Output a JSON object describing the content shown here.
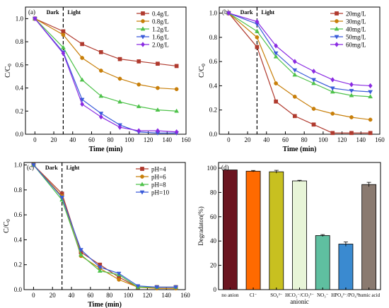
{
  "chart_data": [
    {
      "type": "line",
      "panel_label": "(a)",
      "xlabel": "Time (min)",
      "ylabel": "C/C0",
      "xlim": [
        -10,
        160
      ],
      "ylim": [
        0,
        1.1
      ],
      "xticks": [
        0,
        20,
        40,
        60,
        80,
        100,
        120,
        140,
        160
      ],
      "yticks": [
        0,
        0.2,
        0.4,
        0.6,
        0.8,
        1.0
      ],
      "annotations": {
        "dark": "Dark",
        "light": "Light"
      },
      "divider_x": 30,
      "legend": "top-right",
      "x": [
        0,
        30,
        50,
        70,
        90,
        110,
        130,
        150
      ],
      "series": [
        {
          "name": "0.4g/L",
          "color": "#b03a2e",
          "marker": "square",
          "values": [
            1.0,
            0.89,
            0.78,
            0.71,
            0.65,
            0.63,
            0.61,
            0.59
          ]
        },
        {
          "name": "0.8g/L",
          "color": "#c87f0a",
          "marker": "circle",
          "values": [
            1.0,
            0.86,
            0.66,
            0.55,
            0.48,
            0.43,
            0.4,
            0.39
          ]
        },
        {
          "name": "1.2g/L",
          "color": "#4ec24a",
          "marker": "triangle",
          "values": [
            1.0,
            0.75,
            0.47,
            0.33,
            0.28,
            0.24,
            0.21,
            0.2
          ]
        },
        {
          "name": "1.6g/L",
          "color": "#3a5bd9",
          "marker": "triangle-down",
          "values": [
            1.0,
            0.71,
            0.3,
            0.18,
            0.08,
            0.02,
            0.01,
            0.01
          ]
        },
        {
          "name": "2.0g/L",
          "color": "#8a2be2",
          "marker": "diamond",
          "values": [
            1.0,
            0.7,
            0.26,
            0.15,
            0.06,
            0.03,
            0.03,
            0.02
          ]
        }
      ]
    },
    {
      "type": "line",
      "panel_label": "(b)",
      "xlabel": "Time (min)",
      "ylabel": "C/C0",
      "xlim": [
        -10,
        160
      ],
      "ylim": [
        0,
        1.05
      ],
      "xticks": [
        0,
        20,
        40,
        60,
        80,
        100,
        120,
        140,
        160
      ],
      "yticks": [
        0,
        0.2,
        0.4,
        0.6,
        0.8,
        1.0
      ],
      "annotations": {
        "dark": "Dark",
        "light": "Light"
      },
      "divider_x": 30,
      "legend": "top-right",
      "x": [
        0,
        30,
        50,
        70,
        90,
        110,
        130,
        150
      ],
      "series": [
        {
          "name": "20mg/L",
          "color": "#b03a2e",
          "marker": "square",
          "values": [
            1.0,
            0.72,
            0.27,
            0.15,
            0.08,
            0.01,
            0.01,
            0.01
          ]
        },
        {
          "name": "30mg/L",
          "color": "#c87f0a",
          "marker": "circle",
          "values": [
            1.0,
            0.8,
            0.42,
            0.31,
            0.21,
            0.17,
            0.14,
            0.12
          ]
        },
        {
          "name": "40mg/L",
          "color": "#4ec24a",
          "marker": "triangle",
          "values": [
            1.0,
            0.85,
            0.64,
            0.49,
            0.42,
            0.35,
            0.32,
            0.31
          ]
        },
        {
          "name": "50mg/L",
          "color": "#3a5bd9",
          "marker": "triangle-down",
          "values": [
            1.0,
            0.91,
            0.67,
            0.53,
            0.45,
            0.38,
            0.36,
            0.35
          ]
        },
        {
          "name": "60mg/L",
          "color": "#8a2be2",
          "marker": "diamond",
          "values": [
            1.0,
            0.93,
            0.73,
            0.6,
            0.52,
            0.45,
            0.41,
            0.4
          ]
        }
      ]
    },
    {
      "type": "line",
      "panel_label": "(c)",
      "xlabel": "Time (min)",
      "ylabel": "C/C0",
      "xlim": [
        -10,
        160
      ],
      "ylim": [
        0,
        1.02
      ],
      "xticks": [
        0,
        20,
        40,
        60,
        80,
        100,
        120,
        140,
        160
      ],
      "yticks": [
        0,
        0.2,
        0.4,
        0.6,
        0.8,
        1.0
      ],
      "annotations": {
        "dark": "Dark",
        "light": "Light"
      },
      "divider_x": 30,
      "legend": "top-right",
      "x": [
        0,
        30,
        50,
        70,
        90,
        110,
        130,
        150
      ],
      "series": [
        {
          "name": "pH=4",
          "color": "#b03a2e",
          "marker": "square",
          "values": [
            1.0,
            0.77,
            0.3,
            0.2,
            0.1,
            0.02,
            0.02,
            0.02
          ]
        },
        {
          "name": "pH=6",
          "color": "#c87f0a",
          "marker": "circle",
          "values": [
            1.0,
            0.75,
            0.27,
            0.17,
            0.08,
            0.02,
            0.01,
            0.01
          ]
        },
        {
          "name": "pH=8",
          "color": "#4ec24a",
          "marker": "triangle",
          "values": [
            1.0,
            0.72,
            0.28,
            0.15,
            0.12,
            0.02,
            0.02,
            0.02
          ]
        },
        {
          "name": "pH=10",
          "color": "#3a5bd9",
          "marker": "triangle-down",
          "values": [
            1.0,
            0.74,
            0.32,
            0.18,
            0.13,
            0.03,
            0.02,
            0.02
          ]
        }
      ]
    },
    {
      "type": "bar",
      "panel_label": "(d)",
      "xlabel": "anionic",
      "ylabel": "Degradaton(%)",
      "ylim": [
        0,
        100
      ],
      "yticks": [
        0,
        20,
        40,
        60,
        80,
        100
      ],
      "categories": [
        "no anion",
        "Cl⁻",
        "SO₄²⁻",
        "HCO₃⁻/CO₃²⁻",
        "NO₃⁻",
        "HPO₄²⁻/PO₄³⁻",
        "humic acid"
      ],
      "values": [
        98.5,
        97.5,
        97.0,
        89.5,
        44.5,
        37.5,
        86.5
      ],
      "errors": [
        0,
        0.6,
        1.2,
        0.5,
        0.8,
        1.8,
        1.8
      ],
      "colors": [
        "#6b1520",
        "#ff6a00",
        "#c8c020",
        "#e8f5d8",
        "#5fbfa0",
        "#3a8ad0",
        "#8a7a70"
      ]
    }
  ]
}
